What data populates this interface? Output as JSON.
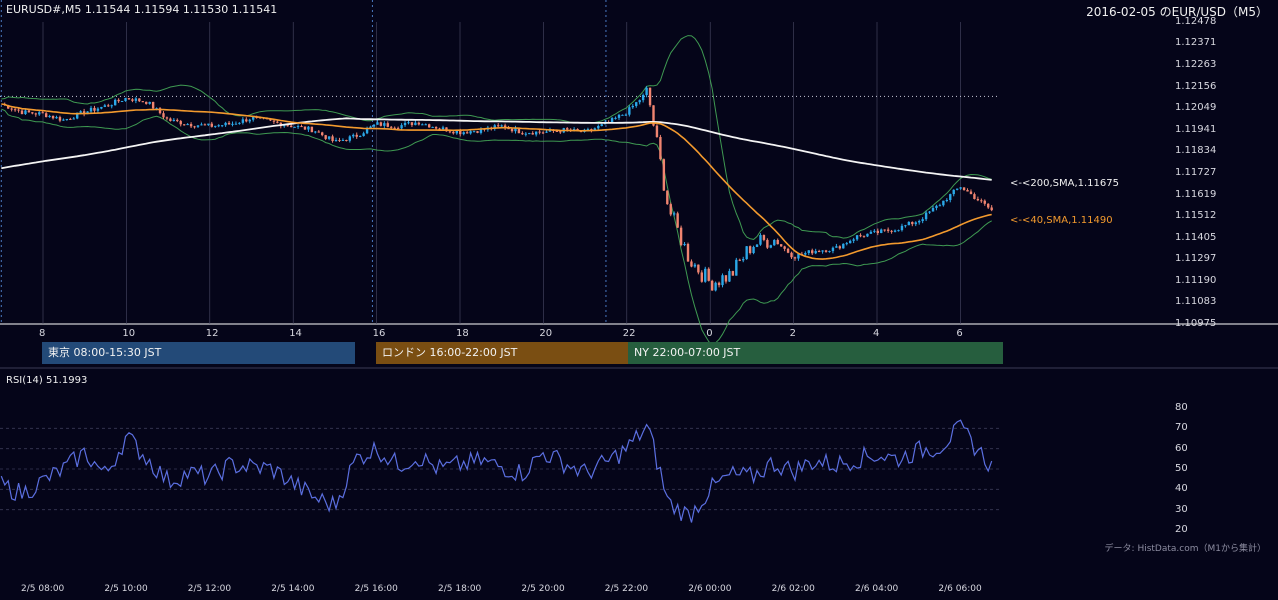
{
  "header": {
    "symbol_info": "EURUSD#,M5 1.11544 1.11594 1.11530 1.11541",
    "title": "2016-02-05 のEUR/USD（M5）"
  },
  "price_axis": {
    "ticks": [
      "1.12478",
      "1.12371",
      "1.12263",
      "1.12156",
      "1.12049",
      "1.11941",
      "1.11834",
      "1.11727",
      "1.11619",
      "1.11512",
      "1.11405",
      "1.11297",
      "1.11190",
      "1.11083",
      "1.10975"
    ]
  },
  "hour_axis": {
    "ticks": [
      "8",
      "10",
      "12",
      "14",
      "16",
      "18",
      "20",
      "22",
      "0",
      "2",
      "4",
      "6"
    ]
  },
  "sessions": [
    {
      "label": "東京 08:00-15:30 JST",
      "color": "#234a78"
    },
    {
      "label": "ロンドン 16:00-22:00 JST",
      "color": "#7a4e12"
    },
    {
      "label": "NY 22:00-07:00 JST",
      "color": "#265e3e"
    }
  ],
  "sma_labels": {
    "sma200": "<-<200,SMA,1.11675",
    "sma40": "<-<40,SMA,1.11490"
  },
  "rsi": {
    "label": "RSI(14) 51.1993",
    "ticks": [
      "80",
      "70",
      "60",
      "50",
      "40",
      "30",
      "20"
    ]
  },
  "source_note": "データ: HistData.com（M1から集計）",
  "time_axis": {
    "ticks": [
      "2/5 08:00",
      "2/5 10:00",
      "2/5 12:00",
      "2/5 14:00",
      "2/5 16:00",
      "2/5 18:00",
      "2/5 20:00",
      "2/5 22:00",
      "2/6 00:00",
      "2/6 02:00",
      "2/6 04:00",
      "2/6 06:00"
    ]
  },
  "colors": {
    "background": "#050519",
    "bull_candle": "#2ba8e8",
    "bear_candle": "#f08470",
    "bollinger": "#3f9a52",
    "sma200": "#f4f4f4",
    "sma40": "#f39a2e",
    "rsi_line": "#5b6fe0"
  },
  "chart_data": [
    {
      "type": "line",
      "title": "",
      "description_series": [
        {
          "name": "200,SMA",
          "last_value": 1.11675
        },
        {
          "name": "40,SMA",
          "last_value": 1.1149
        }
      ],
      "x_hours": [
        7.0,
        7.5,
        8.0,
        8.5,
        9.0,
        9.5,
        10.0,
        10.5,
        11.0,
        11.5,
        12.0,
        12.5,
        13.0,
        13.5,
        14.0,
        14.5,
        15.0,
        15.5,
        16.0,
        16.5,
        17.0,
        17.5,
        18.0,
        18.5,
        19.0,
        19.5,
        20.0,
        20.5,
        21.0,
        21.5,
        22.0,
        22.5,
        23.0,
        23.5,
        24.0,
        24.5,
        25.0,
        25.5,
        26.0,
        26.5,
        27.0,
        27.5,
        28.0,
        28.5,
        29.0,
        29.5,
        30.0,
        30.75
      ],
      "close": [
        1.1207,
        1.1203,
        1.1202,
        1.1199,
        1.1203,
        1.1206,
        1.121,
        1.1208,
        1.1199,
        1.1197,
        1.1196,
        1.1197,
        1.12,
        1.1198,
        1.1196,
        1.1194,
        1.1188,
        1.1191,
        1.1197,
        1.1196,
        1.1198,
        1.1195,
        1.1193,
        1.1194,
        1.1196,
        1.1193,
        1.1193,
        1.1194,
        1.1193,
        1.1197,
        1.1203,
        1.1213,
        1.1155,
        1.113,
        1.1118,
        1.1122,
        1.1137,
        1.114,
        1.1131,
        1.1134,
        1.1135,
        1.1141,
        1.1143,
        1.1145,
        1.1149,
        1.1157,
        1.1166,
        1.11541
      ],
      "ylim": [
        1.10975,
        1.12478
      ],
      "xlim": [
        7.0,
        31.0
      ]
    },
    {
      "type": "line",
      "title": "",
      "ylabel": "RSI(14)",
      "ylim": [
        20,
        80
      ],
      "x_hours": [
        7.0,
        7.5,
        8.0,
        8.5,
        9.0,
        9.5,
        10.0,
        10.5,
        11.0,
        11.5,
        12.0,
        12.5,
        13.0,
        13.5,
        14.0,
        14.5,
        15.0,
        15.5,
        16.0,
        16.5,
        17.0,
        17.5,
        18.0,
        18.5,
        19.0,
        19.5,
        20.0,
        20.5,
        21.0,
        21.5,
        22.0,
        22.5,
        23.0,
        23.5,
        24.0,
        24.5,
        25.0,
        25.5,
        26.0,
        26.5,
        27.0,
        27.5,
        28.0,
        28.5,
        29.0,
        29.5,
        30.0,
        30.75
      ],
      "values": [
        42,
        38,
        44,
        50,
        58,
        47,
        66,
        55,
        44,
        48,
        46,
        52,
        51,
        50,
        43,
        36,
        32,
        55,
        60,
        52,
        56,
        50,
        52,
        54,
        51,
        48,
        58,
        53,
        48,
        53,
        60,
        71,
        33,
        27,
        40,
        47,
        46,
        53,
        49,
        54,
        52,
        55,
        57,
        55,
        59,
        61,
        70,
        51.2
      ]
    }
  ]
}
